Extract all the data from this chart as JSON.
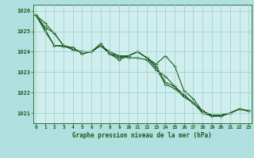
{
  "x": [
    0,
    1,
    2,
    3,
    4,
    5,
    6,
    7,
    8,
    9,
    10,
    11,
    12,
    13,
    14,
    15,
    16,
    17,
    18,
    19,
    20,
    21,
    22,
    23
  ],
  "line1": [
    1025.8,
    1025.4,
    1024.9,
    1024.3,
    1024.1,
    1024.0,
    1024.0,
    1024.4,
    1023.9,
    1023.8,
    1023.8,
    1024.0,
    1023.7,
    1023.4,
    1023.8,
    1023.3,
    1022.1,
    1021.7,
    1021.1,
    1020.9,
    1020.9,
    1021.0,
    1021.2,
    1021.1
  ],
  "line2": [
    1025.8,
    1025.2,
    1024.9,
    1024.3,
    1024.1,
    1024.0,
    1024.0,
    1024.3,
    1024.0,
    1023.8,
    1023.7,
    1023.7,
    1023.6,
    1023.1,
    1022.8,
    1022.3,
    1021.9,
    1021.5,
    1021.1,
    1020.9,
    1020.9,
    1021.0,
    1021.2,
    1021.1
  ],
  "line3": [
    1025.8,
    1025.1,
    1024.3,
    1024.3,
    1024.2,
    1023.9,
    1024.0,
    1024.3,
    1023.9,
    1023.7,
    1023.8,
    1024.0,
    1023.7,
    1023.3,
    1022.5,
    1022.3,
    1021.8,
    1021.5,
    1021.1,
    1020.85,
    1020.85,
    1021.0,
    1021.2,
    1021.1
  ],
  "line4": [
    1025.8,
    1025.0,
    1024.3,
    1024.25,
    1024.2,
    1023.9,
    1024.0,
    1024.3,
    1023.9,
    1023.6,
    1023.8,
    1024.0,
    1023.7,
    1023.2,
    1022.4,
    1022.2,
    1021.8,
    1021.5,
    1021.0,
    1020.85,
    1020.85,
    1021.0,
    1021.2,
    1021.1
  ],
  "ylim": [
    1020.5,
    1026.3
  ],
  "yticks": [
    1021,
    1022,
    1023,
    1024,
    1025,
    1026
  ],
  "xticks": [
    0,
    1,
    2,
    3,
    4,
    5,
    6,
    7,
    8,
    9,
    10,
    11,
    12,
    13,
    14,
    15,
    16,
    17,
    18,
    19,
    20,
    21,
    22,
    23
  ],
  "xlabel": "Graphe pression niveau de la mer (hPa)",
  "line_color": "#1a5c1a",
  "bg_color": "#b0e0e0",
  "plot_bg_color": "#d0eeee",
  "grid_color": "#99cccc",
  "marker": "+",
  "linewidth": 0.8,
  "markersize": 3.5,
  "markeredgewidth": 0.8
}
